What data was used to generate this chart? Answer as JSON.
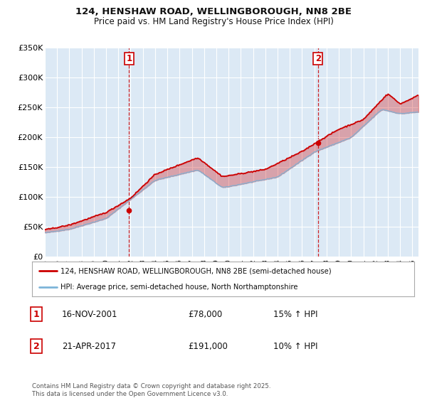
{
  "title_line1": "124, HENSHAW ROAD, WELLINGBOROUGH, NN8 2BE",
  "title_line2": "Price paid vs. HM Land Registry's House Price Index (HPI)",
  "background_color": "#ffffff",
  "plot_bg_color": "#dce9f5",
  "grid_color": "#ffffff",
  "sale1_date": "16-NOV-2001",
  "sale1_price": 78000,
  "sale1_hpi": "15% ↑ HPI",
  "sale2_date": "21-APR-2017",
  "sale2_price": 191000,
  "sale2_hpi": "10% ↑ HPI",
  "legend_label1": "124, HENSHAW ROAD, WELLINGBOROUGH, NN8 2BE (semi-detached house)",
  "legend_label2": "HPI: Average price, semi-detached house, North Northamptonshire",
  "footer": "Contains HM Land Registry data © Crown copyright and database right 2025.\nThis data is licensed under the Open Government Licence v3.0.",
  "line_color_red": "#cc0000",
  "line_color_blue": "#7db4d8",
  "vline_color": "#cc0000",
  "ylim_max": 350000,
  "ylim_min": 0,
  "yticks": [
    0,
    50000,
    100000,
    150000,
    200000,
    250000,
    300000,
    350000
  ],
  "ytick_labels": [
    "£0",
    "£50K",
    "£100K",
    "£150K",
    "£200K",
    "£250K",
    "£300K",
    "£350K"
  ],
  "x_start_year": 1995,
  "x_end_year": 2025
}
